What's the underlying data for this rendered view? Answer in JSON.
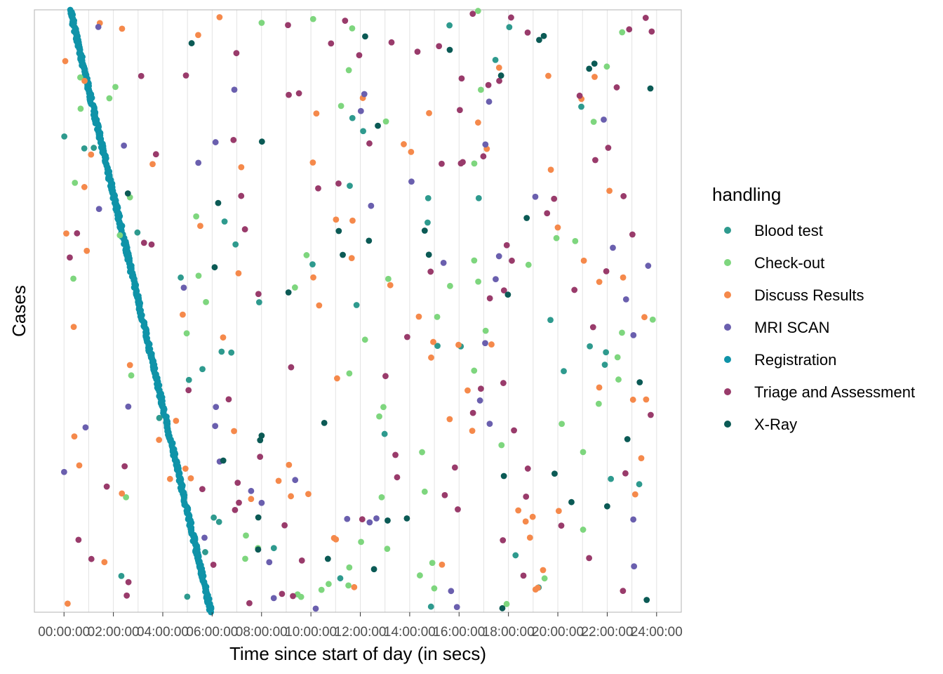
{
  "chart_data": {
    "type": "scatter",
    "title": "",
    "xlabel": "Time since start of day (in secs)",
    "ylabel": "Cases",
    "x_ticks": [
      "00:00:00",
      "02:00:00",
      "04:00:00",
      "06:00:00",
      "08:00:00",
      "10:00:00",
      "12:00:00",
      "14:00:00",
      "16:00:00",
      "18:00:00",
      "20:00:00",
      "22:00:00",
      "24:00:00"
    ],
    "xlim_hours": [
      -1.2,
      25.0
    ],
    "ylim_cases": [
      0,
      500
    ],
    "grid": "vertical lines at 1-hour intervals",
    "legend": {
      "title": "handling",
      "placement": "right",
      "entries": [
        {
          "name": "Blood test",
          "color": "#2e9a8e"
        },
        {
          "name": "Check-out",
          "color": "#7ed67e"
        },
        {
          "name": "Discuss Results",
          "color": "#f5894b"
        },
        {
          "name": "MRI SCAN",
          "color": "#6a5fae"
        },
        {
          "name": "Registration",
          "color": "#0f93a8"
        },
        {
          "name": "Triage and Assessment",
          "color": "#993b6b"
        },
        {
          "name": "X-Ray",
          "color": "#0b5a55"
        }
      ]
    },
    "series": [
      {
        "name": "Registration",
        "x_hours_start": 0.25,
        "x_hours_end": 5.95,
        "y_start_case": 500,
        "y_end_case": 0,
        "points": 500
      },
      {
        "name": "Blood test",
        "points_sampled": 45
      },
      {
        "name": "Check-out",
        "points_sampled": 70
      },
      {
        "name": "Discuss Results",
        "points_sampled": 85
      },
      {
        "name": "MRI SCAN",
        "points_sampled": 45
      },
      {
        "name": "Triage and Assessment",
        "points_sampled": 95
      },
      {
        "name": "X-Ray",
        "points_sampled": 40
      }
    ]
  }
}
